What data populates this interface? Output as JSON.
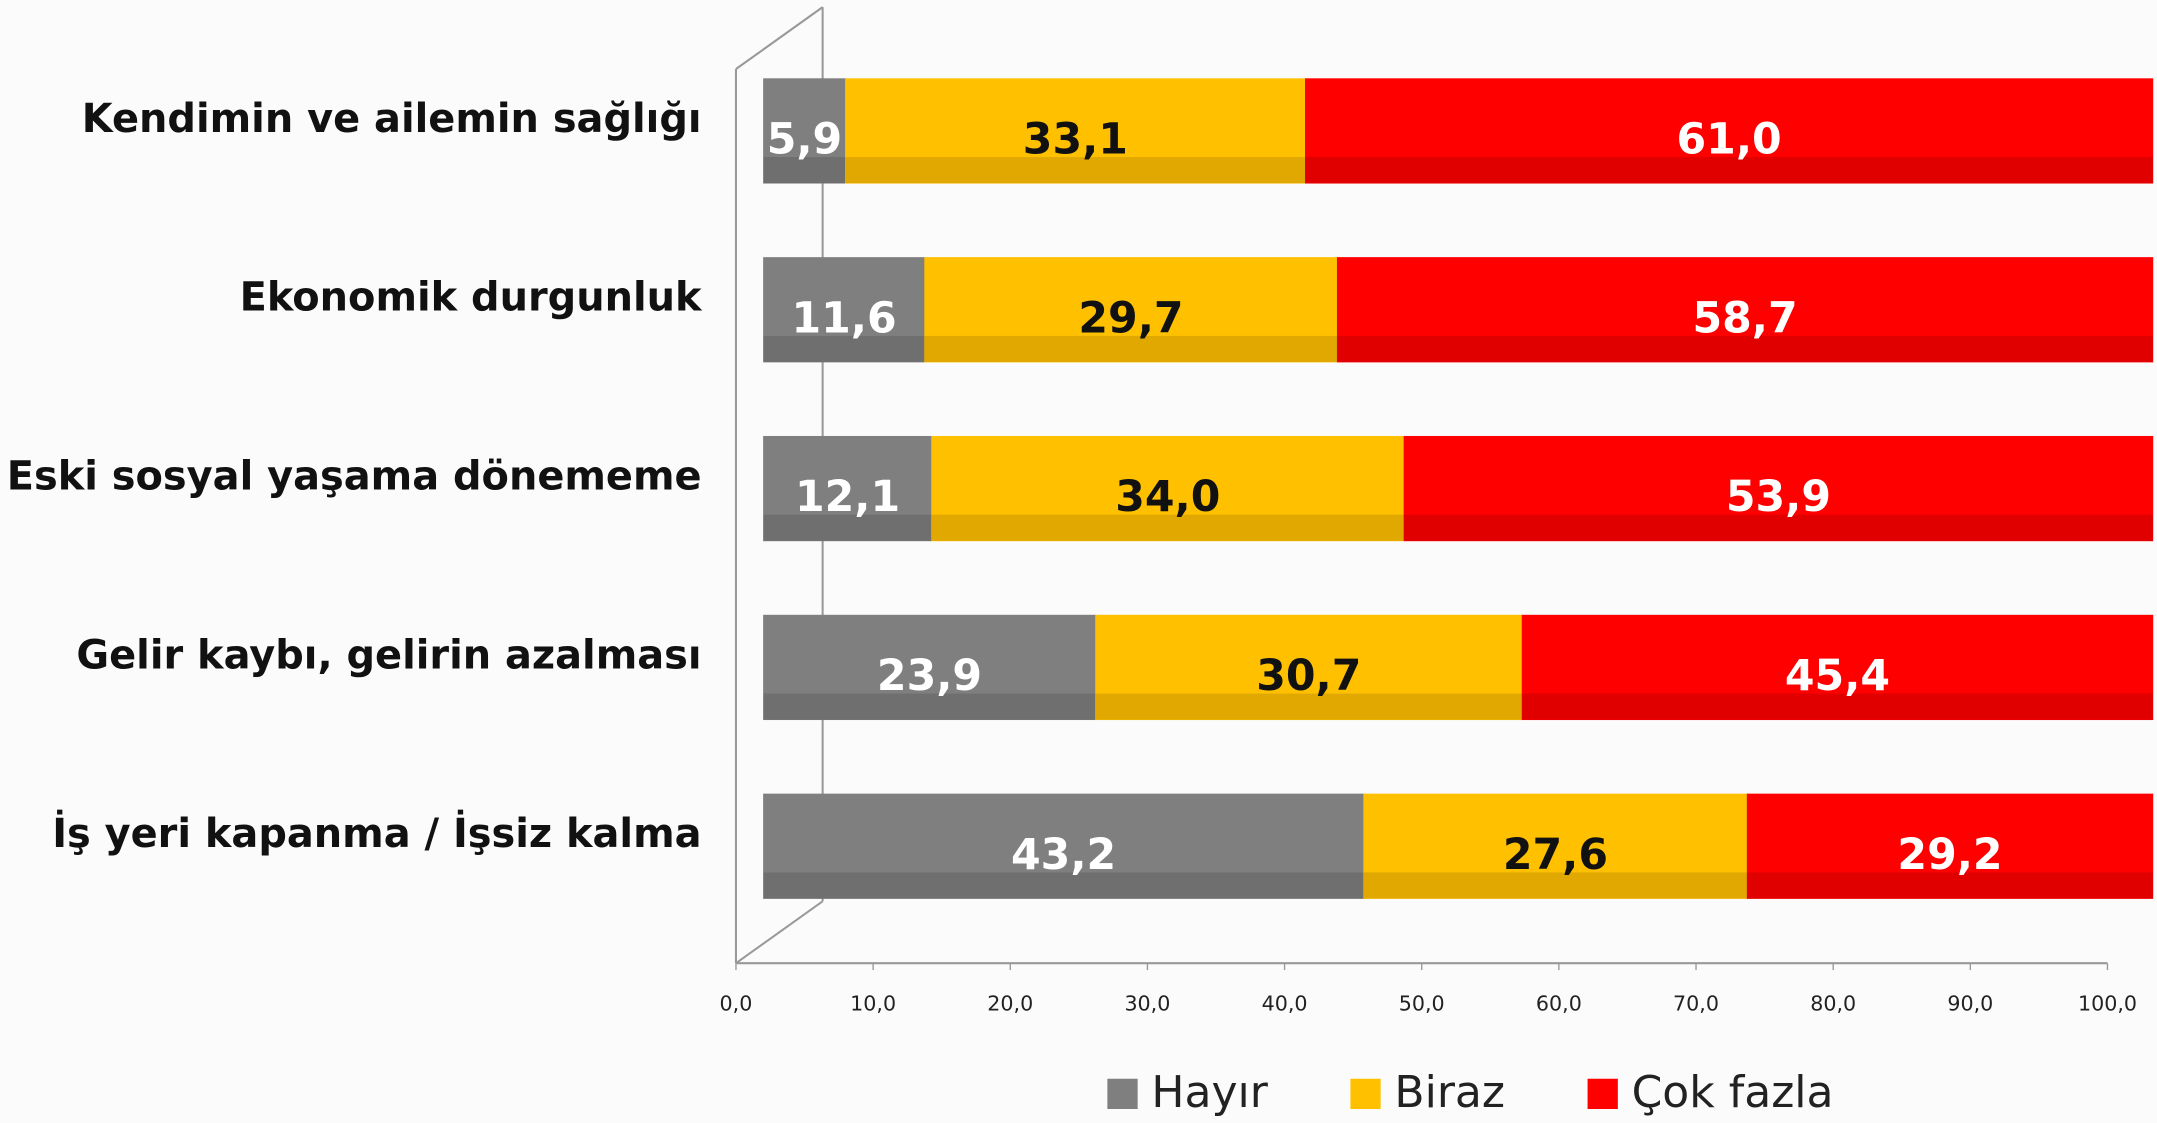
{
  "chart_data": {
    "type": "stacked-bar",
    "orientation": "horizontal",
    "categories": [
      "Kendimin ve ailemin sağlığı",
      "Ekonomik durgunluk",
      "Eski sosyal yaşama dönememe",
      "Gelir kaybı, gelirin azalması",
      "İş yeri kapanma / İşsiz kalma"
    ],
    "series": [
      {
        "name": "Hayır",
        "color": "#7f7f7f",
        "values": [
          5.9,
          11.6,
          12.1,
          23.9,
          43.2
        ],
        "value_labels": [
          "5,9",
          "11,6",
          "12,1",
          "23,9",
          "43,2"
        ]
      },
      {
        "name": "Biraz",
        "color": "#ffc000",
        "values": [
          33.1,
          29.7,
          34.0,
          30.7,
          27.6
        ],
        "value_labels": [
          "33,1",
          "29,7",
          "34,0",
          "30,7",
          "27,6"
        ]
      },
      {
        "name": "Çok fazla",
        "color": "#ff0000",
        "values": [
          61.0,
          58.7,
          53.9,
          45.4,
          29.2
        ],
        "value_labels": [
          "61,0",
          "58,7",
          "53,9",
          "45,4",
          "29,2"
        ]
      }
    ],
    "xlim": [
      0,
      100
    ],
    "xticks": [
      {
        "value": 0,
        "label": "0,0"
      },
      {
        "value": 10,
        "label": "10,0"
      },
      {
        "value": 20,
        "label": "20,0"
      },
      {
        "value": 30,
        "label": "30,0"
      },
      {
        "value": 40,
        "label": "40,0"
      },
      {
        "value": 50,
        "label": "50,0"
      },
      {
        "value": 60,
        "label": "60,0"
      },
      {
        "value": 70,
        "label": "70,0"
      },
      {
        "value": 80,
        "label": "80,0"
      },
      {
        "value": 90,
        "label": "90,0"
      },
      {
        "value": 100,
        "label": "100,0"
      }
    ],
    "legend": "bottom"
  }
}
